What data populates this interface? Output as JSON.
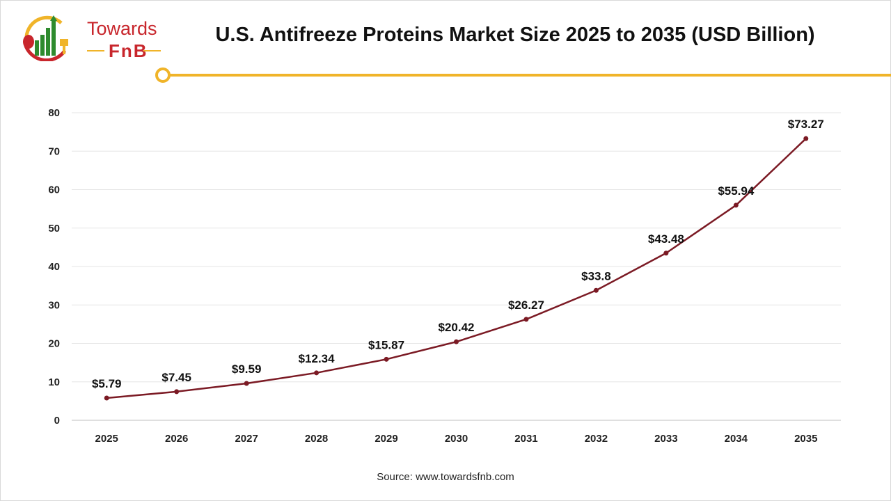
{
  "logo": {
    "word": "Towards",
    "sub": "FnB"
  },
  "title": "U.S. Antifreeze Proteins Market Size 2025 to 2035 (USD Billion)",
  "source": "Source: www.towardsfnb.com",
  "colors": {
    "line": "#7b1a24",
    "accent": "#f0b429",
    "brand": "#c8262c",
    "grid": "#e6e6e6"
  },
  "chart_data": {
    "type": "line",
    "title": "U.S. Antifreeze Proteins Market Size 2025 to 2035 (USD Billion)",
    "xlabel": "",
    "ylabel": "",
    "categories": [
      "2025",
      "2026",
      "2027",
      "2028",
      "2029",
      "2030",
      "2031",
      "2032",
      "2033",
      "2034",
      "2035"
    ],
    "values": [
      5.79,
      7.45,
      9.59,
      12.34,
      15.87,
      20.42,
      26.27,
      33.8,
      43.48,
      55.94,
      73.27
    ],
    "data_labels": [
      "$5.79",
      "$7.45",
      "$9.59",
      "$12.34",
      "$15.87",
      "$20.42",
      "$26.27",
      "$33.8",
      "$43.48",
      "$55.94",
      "$73.27"
    ],
    "ylim": [
      0,
      80
    ],
    "yticks": [
      0,
      10,
      20,
      30,
      40,
      50,
      60,
      70,
      80
    ],
    "grid": true,
    "legend": "none"
  }
}
